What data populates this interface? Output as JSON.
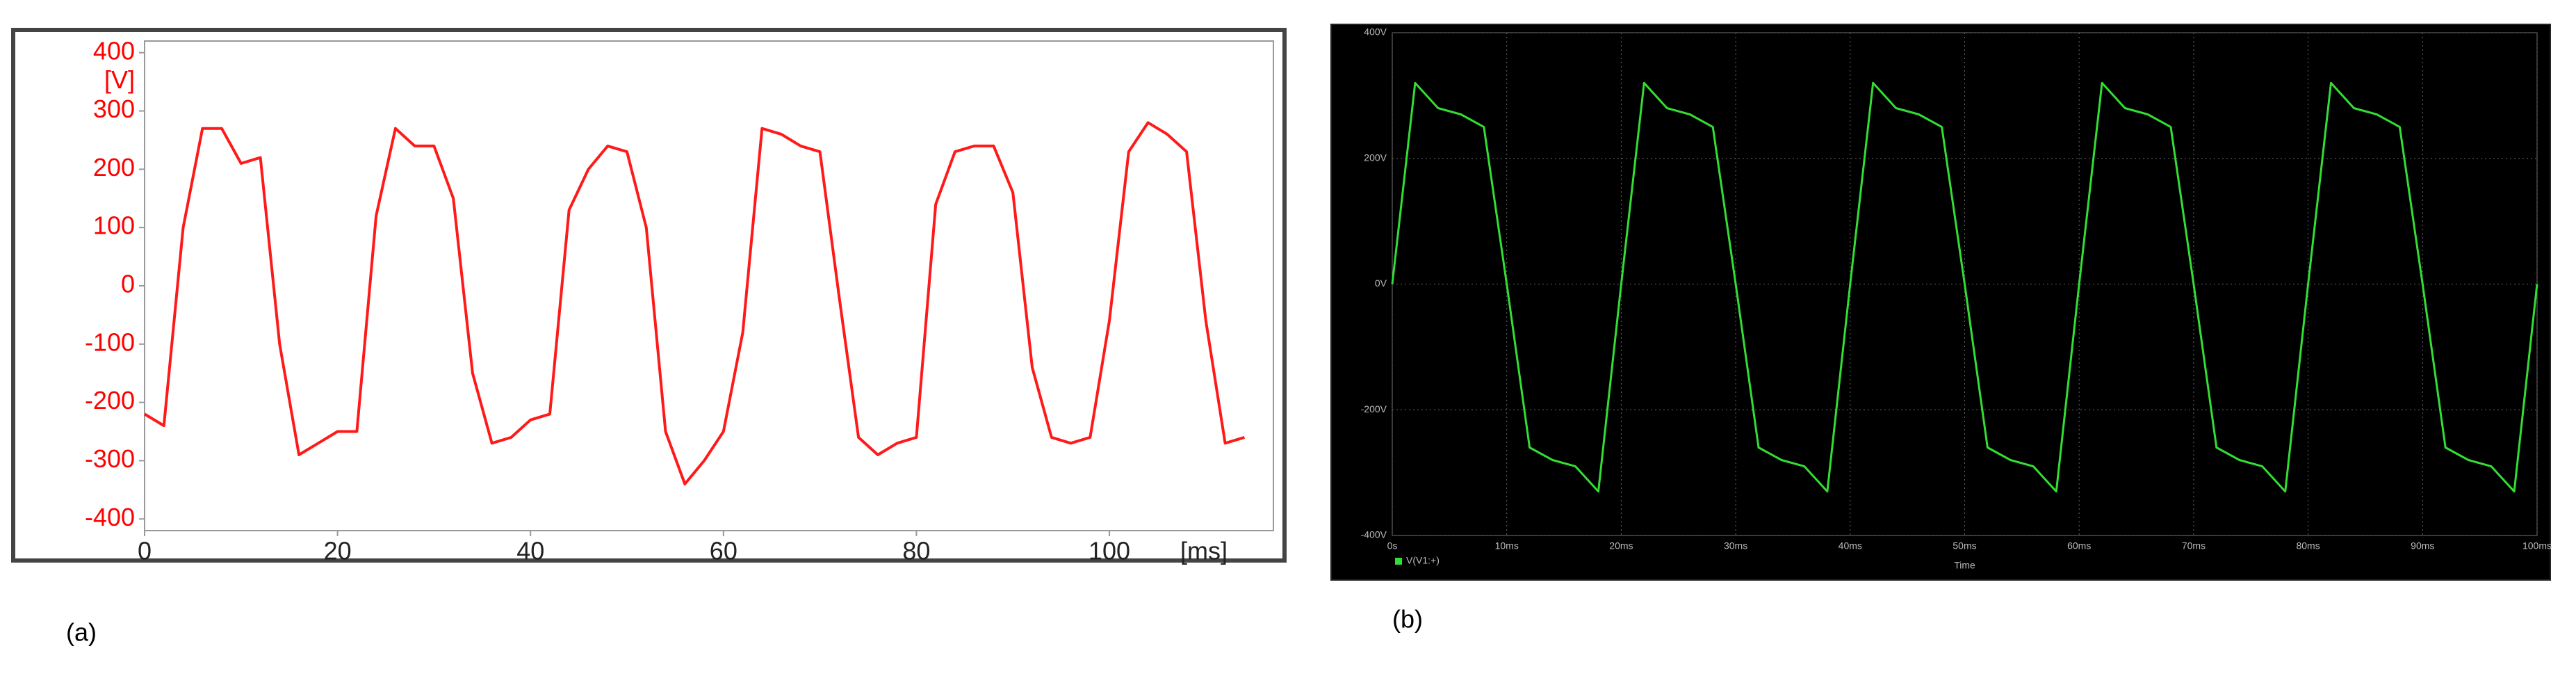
{
  "chart_data": [
    {
      "type": "line",
      "panel_label": "(a)",
      "x_label": "[ms]",
      "y_label": "[V]",
      "background": "#ffffff",
      "frame": "#444444",
      "text_color": "#ff0000",
      "grid": false,
      "xlim": [
        0,
        117
      ],
      "xticks": [
        0,
        20,
        40,
        60,
        80,
        100
      ],
      "ylim": [
        -420,
        420
      ],
      "yticks": [
        -400,
        -300,
        -200,
        -100,
        0,
        100,
        200,
        300,
        400
      ],
      "x": [
        0,
        2,
        4,
        6,
        8,
        10,
        12,
        14,
        16,
        18,
        20,
        22,
        24,
        26,
        28,
        30,
        32,
        34,
        36,
        38,
        40,
        42,
        44,
        46,
        48,
        50,
        52,
        54,
        56,
        58,
        60,
        62,
        64,
        66,
        68,
        70,
        72,
        74,
        76,
        78,
        80,
        82,
        84,
        86,
        88,
        90,
        92,
        94,
        96,
        98,
        100,
        102,
        104,
        106,
        108,
        110,
        112,
        114
      ],
      "series": [
        {
          "color": "#ff1a1a",
          "values": [
            -220,
            -240,
            100,
            270,
            270,
            210,
            220,
            -100,
            -290,
            -270,
            -250,
            -250,
            120,
            270,
            240,
            240,
            150,
            -150,
            -270,
            -260,
            -230,
            -220,
            130,
            200,
            240,
            230,
            100,
            -250,
            -340,
            -300,
            -250,
            -80,
            270,
            260,
            240,
            230,
            -20,
            -260,
            -290,
            -270,
            -260,
            140,
            230,
            240,
            240,
            160,
            -140,
            -260,
            -270,
            -260,
            -60,
            230,
            280,
            260,
            230,
            -60,
            -270,
            -260
          ]
        }
      ]
    },
    {
      "type": "line",
      "panel_label": "(b)",
      "x_label": "Time",
      "background": "#000000",
      "frame": "#222222",
      "text_color": "#bbbbbb",
      "grid": true,
      "xlim": [
        0,
        100
      ],
      "xticks": [
        {
          "value": 0,
          "label": "0s"
        },
        {
          "value": 10,
          "label": "10ms"
        },
        {
          "value": 20,
          "label": "20ms"
        },
        {
          "value": 30,
          "label": "30ms"
        },
        {
          "value": 40,
          "label": "40ms"
        },
        {
          "value": 50,
          "label": "50ms"
        },
        {
          "value": 60,
          "label": "60ms"
        },
        {
          "value": 70,
          "label": "70ms"
        },
        {
          "value": 80,
          "label": "80ms"
        },
        {
          "value": 90,
          "label": "90ms"
        },
        {
          "value": 100,
          "label": "100ms"
        }
      ],
      "ylim": [
        -400,
        400
      ],
      "yticks": [
        {
          "value": -400,
          "label": "-400V"
        },
        {
          "value": -200,
          "label": "-200V"
        },
        {
          "value": 0,
          "label": "0V"
        },
        {
          "value": 200,
          "label": "200V"
        },
        {
          "value": 400,
          "label": "400V"
        }
      ],
      "x": [
        0,
        2,
        4,
        6,
        8,
        10,
        12,
        14,
        16,
        18,
        20,
        22,
        24,
        26,
        28,
        30,
        32,
        34,
        36,
        38,
        40,
        42,
        44,
        46,
        48,
        50,
        52,
        54,
        56,
        58,
        60,
        62,
        64,
        66,
        68,
        70,
        72,
        74,
        76,
        78,
        80,
        82,
        84,
        86,
        88,
        90,
        92,
        94,
        96,
        98,
        100
      ],
      "series": [
        {
          "name": "V(V1:+)",
          "color": "#33dd33",
          "values": [
            0,
            320,
            280,
            270,
            250,
            0,
            -260,
            -280,
            -290,
            -330,
            0,
            320,
            280,
            270,
            250,
            0,
            -260,
            -280,
            -290,
            -330,
            0,
            320,
            280,
            270,
            250,
            0,
            -260,
            -280,
            -290,
            -330,
            0,
            320,
            280,
            270,
            250,
            0,
            -260,
            -280,
            -290,
            -330,
            0,
            320,
            280,
            270,
            250,
            0,
            -260,
            -280,
            -290,
            -330,
            0
          ]
        }
      ]
    }
  ]
}
